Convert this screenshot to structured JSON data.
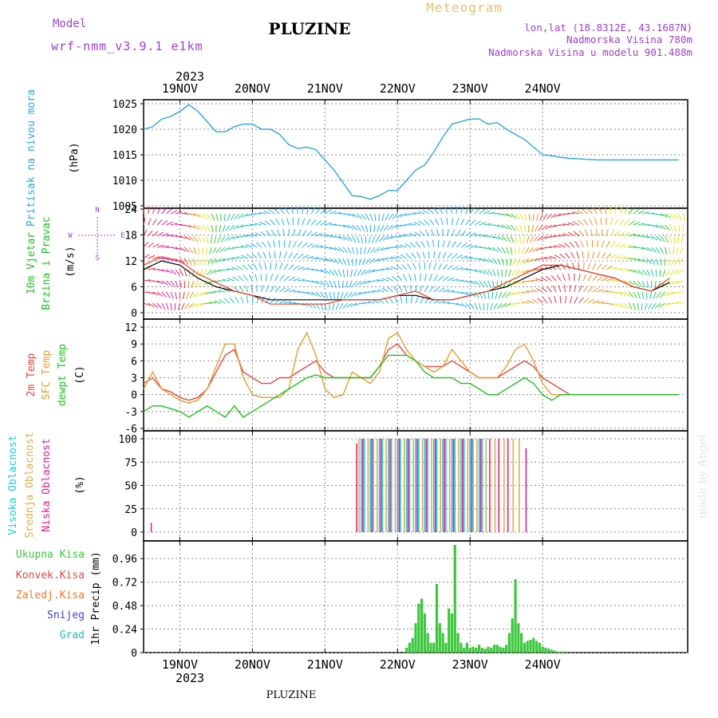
{
  "header": {
    "model_label": "Model",
    "model_name": "wrf-nmm_v3.9.1 e1km",
    "station": "PLUZINE",
    "product": "Meteogram",
    "lonlat": "lon,lat (18.8312E, 43.1687N)",
    "elevation": "Nadmorska Visina 780m",
    "model_elevation": "Nadmorska Visina u modelu 901.488m",
    "footer_station": "PLUZINE",
    "watermark": "made by Angel"
  },
  "colors": {
    "pressure": "#2aa8e0",
    "temp2m": "#e64848",
    "sfc_temp": "#e0a030",
    "dewpt": "#22c022",
    "high_cloud": "#22c8e0",
    "mid_cloud": "#e0b040",
    "low_cloud": "#e0208c",
    "total_precip": "#3cc83c",
    "convective": "#e64848",
    "frozen": "#f07828",
    "snow": "#4040e0",
    "graupel": "#20c0b0",
    "title_purple": "#a040d0",
    "title_orange": "#e8c070"
  },
  "chart_data": [
    {
      "type": "line",
      "name": "pressure",
      "ylabel": "(hPa)",
      "side_label": "Pritisak na nivou mora",
      "ylim": [
        1005,
        1025
      ],
      "yticks": [
        1025,
        1020,
        1015,
        1010,
        1005
      ],
      "top_date_labels": [
        "19NOV",
        "20NOV",
        "21NOV",
        "22NOV",
        "23NOV",
        "24NOV"
      ],
      "top_year": "2023",
      "grid": true,
      "x": [
        0,
        3,
        6,
        9,
        12,
        15,
        18,
        21,
        24,
        27,
        30,
        33,
        36,
        39,
        42,
        45,
        48,
        51,
        54,
        57,
        60,
        63,
        66,
        69,
        72,
        75,
        78,
        81,
        84,
        87,
        90,
        93,
        96,
        99,
        102,
        105,
        108,
        111,
        114,
        117,
        120,
        123,
        126,
        129,
        132,
        135,
        138,
        141,
        144,
        147,
        150,
        153,
        156,
        159,
        162,
        165,
        168,
        171,
        174,
        177
      ],
      "series": [
        {
          "values": [
            1020,
            1020.5,
            1022,
            1022.5,
            1023.5,
            1024.8,
            1023.5,
            1021.5,
            1019.5,
            1019.5,
            1020.5,
            1021,
            1021,
            1020,
            1020,
            1019,
            1017,
            1016.2,
            1016.5,
            1016,
            1014,
            1012,
            1009.5,
            1007,
            1006.8,
            1006.3,
            1007,
            1008,
            1008,
            1010,
            1012,
            1013,
            1015.5,
            1018.5,
            1021,
            1021.5,
            1022,
            1022,
            1021,
            1021.3,
            1020,
            1019,
            1018,
            1016.5,
            1015,
            1014.8,
            1014.5,
            1014.3,
            1014.2,
            1014.1,
            1014,
            1014,
            1014,
            1014,
            1014,
            1014,
            1014,
            1014,
            1014,
            1014
          ]
        }
      ]
    },
    {
      "type": "line",
      "name": "wind",
      "ylabel": "(m/s)",
      "side_label": "10m Vjetar Brzina i Pravac",
      "ylim": [
        0,
        24
      ],
      "yticks": [
        24,
        18,
        12,
        6,
        0
      ],
      "compass": [
        "N",
        "W",
        "E",
        "S"
      ],
      "grid": true,
      "x": [
        0,
        6,
        12,
        18,
        24,
        30,
        36,
        42,
        48,
        54,
        60,
        66,
        72,
        78,
        84,
        90,
        96,
        102,
        108,
        114,
        120,
        126,
        132,
        138,
        144,
        150,
        156,
        162,
        168,
        174
      ],
      "series": [
        {
          "values": [
            10,
            12,
            11,
            8,
            6,
            5,
            4,
            3,
            3,
            3,
            3,
            3,
            3,
            3,
            4,
            4,
            3,
            3,
            4,
            5,
            6,
            8,
            10,
            11,
            10,
            9,
            8,
            6,
            5,
            7
          ]
        },
        {
          "values": [
            11,
            13,
            12,
            9,
            7,
            5,
            4,
            2,
            2,
            2,
            2,
            3,
            3,
            3,
            4,
            5,
            3,
            3,
            4,
            5,
            7,
            9,
            11,
            11,
            10,
            9,
            8,
            6,
            5,
            8
          ]
        }
      ]
    },
    {
      "type": "line",
      "name": "temperature",
      "ylabel": "(C)",
      "side_labels": [
        "2m Temp",
        "SFC Temp",
        "dewpt Temp"
      ],
      "ylim": [
        -6,
        12
      ],
      "yticks": [
        12,
        9,
        6,
        3,
        0,
        -3,
        -6
      ],
      "grid": true,
      "x": [
        0,
        3,
        6,
        9,
        12,
        15,
        18,
        21,
        24,
        27,
        30,
        33,
        36,
        39,
        42,
        45,
        48,
        51,
        54,
        57,
        60,
        63,
        66,
        69,
        72,
        75,
        78,
        81,
        84,
        87,
        90,
        93,
        96,
        99,
        102,
        105,
        108,
        111,
        114,
        117,
        120,
        123,
        126,
        129,
        132,
        135,
        138,
        141,
        144,
        147,
        150,
        153,
        156,
        159,
        162,
        165,
        168,
        171,
        174,
        177
      ],
      "series": [
        {
          "name": "2m Temp",
          "values": [
            2,
            3,
            1,
            0.5,
            -0.5,
            -1,
            -0.5,
            1,
            4,
            7,
            8,
            4,
            3,
            2,
            2,
            3,
            3,
            4,
            5,
            6,
            4,
            3,
            3,
            3,
            3,
            3,
            5,
            8,
            9,
            7,
            6,
            5,
            5,
            5,
            6,
            5,
            4,
            3,
            3,
            3,
            4,
            5,
            6,
            5,
            3,
            2,
            1,
            0,
            0,
            0,
            0,
            0,
            0,
            0,
            0,
            0,
            0,
            0,
            0,
            0
          ]
        },
        {
          "name": "SFC Temp",
          "values": [
            1,
            4,
            1,
            0,
            -1,
            -1.5,
            -1,
            1,
            5,
            9,
            9,
            3,
            0,
            -0.5,
            -0.5,
            -0.5,
            1,
            8,
            11,
            7,
            1,
            -0.5,
            0,
            4,
            3,
            2,
            4,
            10,
            11,
            8,
            6,
            5,
            4,
            5,
            8,
            6,
            4,
            3,
            3,
            3,
            5,
            8,
            9,
            6,
            2,
            0,
            0,
            0,
            0,
            0,
            0,
            0,
            0,
            0,
            0,
            0,
            0,
            0,
            0,
            0
          ]
        },
        {
          "name": "dewpt Temp",
          "values": [
            -3,
            -2,
            -2,
            -2.5,
            -3,
            -4,
            -3,
            -2,
            -3,
            -4,
            -2,
            -4,
            -3,
            -2,
            -1,
            0,
            1,
            2,
            3,
            3.5,
            3,
            3,
            3,
            3,
            3,
            3,
            5,
            7,
            7,
            7,
            6,
            4,
            3,
            3,
            3,
            2,
            2,
            1,
            0,
            0,
            1,
            2,
            3,
            2,
            0,
            -1,
            0,
            0,
            0,
            0,
            0,
            0,
            0,
            0,
            0,
            0,
            0,
            0,
            0,
            0
          ]
        }
      ]
    },
    {
      "type": "bar",
      "name": "cloud",
      "ylabel": "(%)",
      "side_labels": [
        "Visoka Oblacnost",
        "Srednja Oblacnost",
        "Niska Oblacnost"
      ],
      "ylim": [
        0,
        100
      ],
      "yticks": [
        100,
        75,
        50,
        25,
        0
      ],
      "grid": true,
      "series": [
        {
          "name": "Visoka Oblacnost",
          "x": [
            72,
            73,
            75,
            76,
            78,
            79,
            81,
            82,
            84,
            85,
            87,
            88,
            90,
            91,
            93,
            94,
            96,
            97,
            99,
            100,
            102,
            103,
            105,
            106,
            108,
            109,
            111,
            112
          ],
          "values": [
            100,
            100,
            100,
            100,
            100,
            100,
            100,
            100,
            100,
            100,
            100,
            100,
            100,
            100,
            100,
            100,
            100,
            100,
            100,
            100,
            100,
            100,
            100,
            100,
            100,
            100,
            100,
            100
          ]
        },
        {
          "name": "Srednja Oblacnost",
          "x": [
            71,
            74,
            77,
            80,
            83,
            86,
            89,
            92,
            95,
            98,
            101,
            104,
            107,
            110,
            113,
            116,
            119,
            122,
            124
          ],
          "values": [
            100,
            100,
            100,
            100,
            100,
            100,
            100,
            100,
            100,
            100,
            100,
            100,
            100,
            100,
            100,
            100,
            100,
            100,
            100
          ]
        },
        {
          "name": "Niska Oblacnost",
          "x": [
            2,
            70,
            72,
            75,
            78,
            81,
            84,
            87,
            90,
            93,
            96,
            99,
            102,
            105,
            108,
            111,
            114,
            117,
            120,
            126
          ],
          "values": [
            10,
            95,
            100,
            100,
            100,
            100,
            100,
            100,
            100,
            100,
            100,
            100,
            100,
            100,
            100,
            100,
            100,
            100,
            100,
            90
          ]
        }
      ]
    },
    {
      "type": "bar",
      "name": "precip",
      "ylabel": "1hr Precip (mm)",
      "side_labels": [
        "Ukupna Kisa",
        "Konvek.Kisa",
        "Zaledj.Kisa",
        "Snijeg",
        "Grad"
      ],
      "ylim": [
        0,
        1.1
      ],
      "yticks": [
        0.96,
        0.72,
        0.48,
        0.24,
        0
      ],
      "bottom_date_labels": [
        "19NOV",
        "20NOV",
        "21NOV",
        "22NOV",
        "23NOV",
        "24NOV"
      ],
      "bottom_year": "2023",
      "grid": true,
      "x": [
        87,
        88,
        89,
        90,
        91,
        92,
        93,
        94,
        95,
        96,
        97,
        98,
        99,
        100,
        101,
        102,
        103,
        104,
        105,
        106,
        107,
        108,
        109,
        110,
        111,
        112,
        113,
        114,
        115,
        116,
        117,
        118,
        119,
        120,
        121,
        122,
        123,
        124,
        125,
        126,
        127,
        128,
        129,
        130,
        131,
        132,
        133,
        134,
        135,
        136,
        137,
        138,
        139,
        140
      ],
      "series": [
        {
          "name": "Ukupna Kisa",
          "values": [
            0.05,
            0.1,
            0.15,
            0.3,
            0.5,
            0.55,
            0.4,
            0.2,
            0.1,
            0.1,
            0.7,
            0.3,
            0.2,
            0.1,
            0.45,
            0.4,
            1.1,
            0.2,
            0.1,
            0.05,
            0.1,
            0.05,
            0.06,
            0.05,
            0.08,
            0.05,
            0.04,
            0.06,
            0.05,
            0.08,
            0.08,
            0.06,
            0.05,
            0.08,
            0.2,
            0.35,
            0.75,
            0.3,
            0.2,
            0.1,
            0.12,
            0.13,
            0.15,
            0.12,
            0.1,
            0.06,
            0.05,
            0.04,
            0.03,
            0.02,
            0.01,
            0.01,
            0.01,
            0.01
          ]
        }
      ]
    }
  ]
}
